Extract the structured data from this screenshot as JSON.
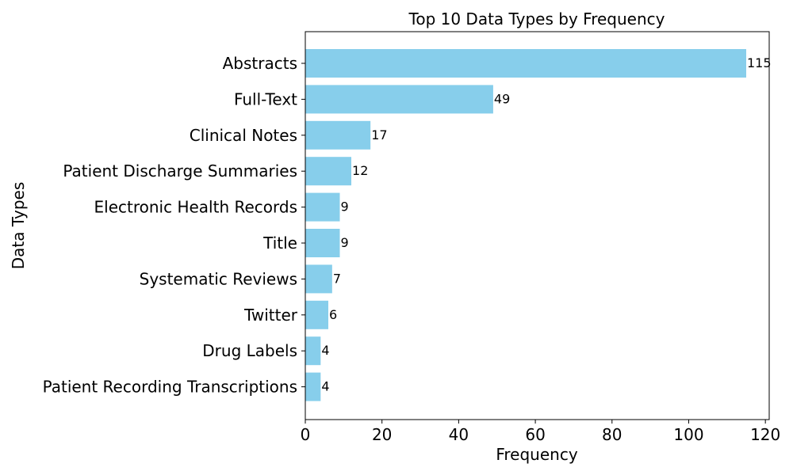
{
  "chart_data": {
    "type": "bar",
    "orientation": "horizontal",
    "title": "Top 10 Data Types by Frequency",
    "xlabel": "Frequency",
    "ylabel": "Data Types",
    "categories": [
      "Abstracts",
      "Full-Text",
      "Clinical Notes",
      "Patient Discharge Summaries",
      "Electronic Health Records",
      "Title",
      "Systematic Reviews",
      "Twitter",
      "Drug Labels",
      "Patient Recording Transcriptions"
    ],
    "values": [
      115,
      49,
      17,
      12,
      9,
      9,
      7,
      6,
      4,
      4
    ],
    "xlim": [
      0,
      121
    ],
    "xticks": [
      0,
      20,
      40,
      60,
      80,
      100,
      120
    ],
    "grid": false,
    "bar_color": "#87ceeb"
  }
}
